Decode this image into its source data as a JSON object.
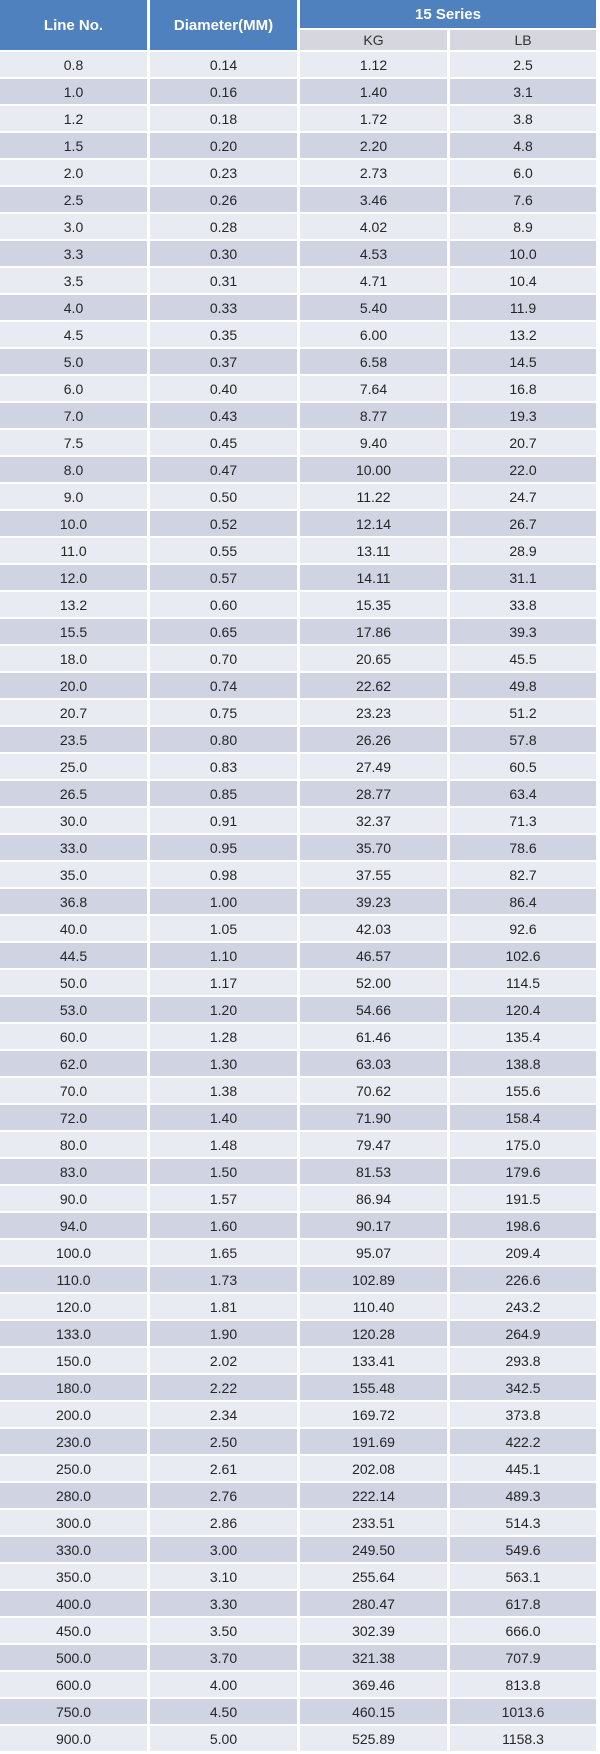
{
  "table": {
    "headers": {
      "line_no": "Line No.",
      "diameter": "Diameter(MM)",
      "series": "15 Series",
      "kg": "KG",
      "lb": "LB"
    }
  },
  "colors": {
    "header_blue": "#4e81bd",
    "subheader_bg": "#d6d7de",
    "row_light": "#e9ebf2",
    "row_dark": "#cfd3e2",
    "header_text": "#ffffff",
    "body_text": "#262626"
  },
  "chart_data": {
    "type": "table",
    "title": "15 Series",
    "columns": [
      "Line No.",
      "Diameter(MM)",
      "KG",
      "LB"
    ],
    "column_groups": [
      {
        "label": "15 Series",
        "spans": [
          "KG",
          "LB"
        ]
      }
    ],
    "rows": [
      [
        "0.8",
        "0.14",
        "1.12",
        "2.5"
      ],
      [
        "1.0",
        "0.16",
        "1.40",
        "3.1"
      ],
      [
        "1.2",
        "0.18",
        "1.72",
        "3.8"
      ],
      [
        "1.5",
        "0.20",
        "2.20",
        "4.8"
      ],
      [
        "2.0",
        "0.23",
        "2.73",
        "6.0"
      ],
      [
        "2.5",
        "0.26",
        "3.46",
        "7.6"
      ],
      [
        "3.0",
        "0.28",
        "4.02",
        "8.9"
      ],
      [
        "3.3",
        "0.30",
        "4.53",
        "10.0"
      ],
      [
        "3.5",
        "0.31",
        "4.71",
        "10.4"
      ],
      [
        "4.0",
        "0.33",
        "5.40",
        "11.9"
      ],
      [
        "4.5",
        "0.35",
        "6.00",
        "13.2"
      ],
      [
        "5.0",
        "0.37",
        "6.58",
        "14.5"
      ],
      [
        "6.0",
        "0.40",
        "7.64",
        "16.8"
      ],
      [
        "7.0",
        "0.43",
        "8.77",
        "19.3"
      ],
      [
        "7.5",
        "0.45",
        "9.40",
        "20.7"
      ],
      [
        "8.0",
        "0.47",
        "10.00",
        "22.0"
      ],
      [
        "9.0",
        "0.50",
        "11.22",
        "24.7"
      ],
      [
        "10.0",
        "0.52",
        "12.14",
        "26.7"
      ],
      [
        "11.0",
        "0.55",
        "13.11",
        "28.9"
      ],
      [
        "12.0",
        "0.57",
        "14.11",
        "31.1"
      ],
      [
        "13.2",
        "0.60",
        "15.35",
        "33.8"
      ],
      [
        "15.5",
        "0.65",
        "17.86",
        "39.3"
      ],
      [
        "18.0",
        "0.70",
        "20.65",
        "45.5"
      ],
      [
        "20.0",
        "0.74",
        "22.62",
        "49.8"
      ],
      [
        "20.7",
        "0.75",
        "23.23",
        "51.2"
      ],
      [
        "23.5",
        "0.80",
        "26.26",
        "57.8"
      ],
      [
        "25.0",
        "0.83",
        "27.49",
        "60.5"
      ],
      [
        "26.5",
        "0.85",
        "28.77",
        "63.4"
      ],
      [
        "30.0",
        "0.91",
        "32.37",
        "71.3"
      ],
      [
        "33.0",
        "0.95",
        "35.70",
        "78.6"
      ],
      [
        "35.0",
        "0.98",
        "37.55",
        "82.7"
      ],
      [
        "36.8",
        "1.00",
        "39.23",
        "86.4"
      ],
      [
        "40.0",
        "1.05",
        "42.03",
        "92.6"
      ],
      [
        "44.5",
        "1.10",
        "46.57",
        "102.6"
      ],
      [
        "50.0",
        "1.17",
        "52.00",
        "114.5"
      ],
      [
        "53.0",
        "1.20",
        "54.66",
        "120.4"
      ],
      [
        "60.0",
        "1.28",
        "61.46",
        "135.4"
      ],
      [
        "62.0",
        "1.30",
        "63.03",
        "138.8"
      ],
      [
        "70.0",
        "1.38",
        "70.62",
        "155.6"
      ],
      [
        "72.0",
        "1.40",
        "71.90",
        "158.4"
      ],
      [
        "80.0",
        "1.48",
        "79.47",
        "175.0"
      ],
      [
        "83.0",
        "1.50",
        "81.53",
        "179.6"
      ],
      [
        "90.0",
        "1.57",
        "86.94",
        "191.5"
      ],
      [
        "94.0",
        "1.60",
        "90.17",
        "198.6"
      ],
      [
        "100.0",
        "1.65",
        "95.07",
        "209.4"
      ],
      [
        "110.0",
        "1.73",
        "102.89",
        "226.6"
      ],
      [
        "120.0",
        "1.81",
        "110.40",
        "243.2"
      ],
      [
        "133.0",
        "1.90",
        "120.28",
        "264.9"
      ],
      [
        "150.0",
        "2.02",
        "133.41",
        "293.8"
      ],
      [
        "180.0",
        "2.22",
        "155.48",
        "342.5"
      ],
      [
        "200.0",
        "2.34",
        "169.72",
        "373.8"
      ],
      [
        "230.0",
        "2.50",
        "191.69",
        "422.2"
      ],
      [
        "250.0",
        "2.61",
        "202.08",
        "445.1"
      ],
      [
        "280.0",
        "2.76",
        "222.14",
        "489.3"
      ],
      [
        "300.0",
        "2.86",
        "233.51",
        "514.3"
      ],
      [
        "330.0",
        "3.00",
        "249.50",
        "549.6"
      ],
      [
        "350.0",
        "3.10",
        "255.64",
        "563.1"
      ],
      [
        "400.0",
        "3.30",
        "280.47",
        "617.8"
      ],
      [
        "450.0",
        "3.50",
        "302.39",
        "666.0"
      ],
      [
        "500.0",
        "3.70",
        "321.38",
        "707.9"
      ],
      [
        "600.0",
        "4.00",
        "369.46",
        "813.8"
      ],
      [
        "750.0",
        "4.50",
        "460.15",
        "1013.6"
      ],
      [
        "900.0",
        "5.00",
        "525.89",
        "1158.3"
      ]
    ]
  }
}
